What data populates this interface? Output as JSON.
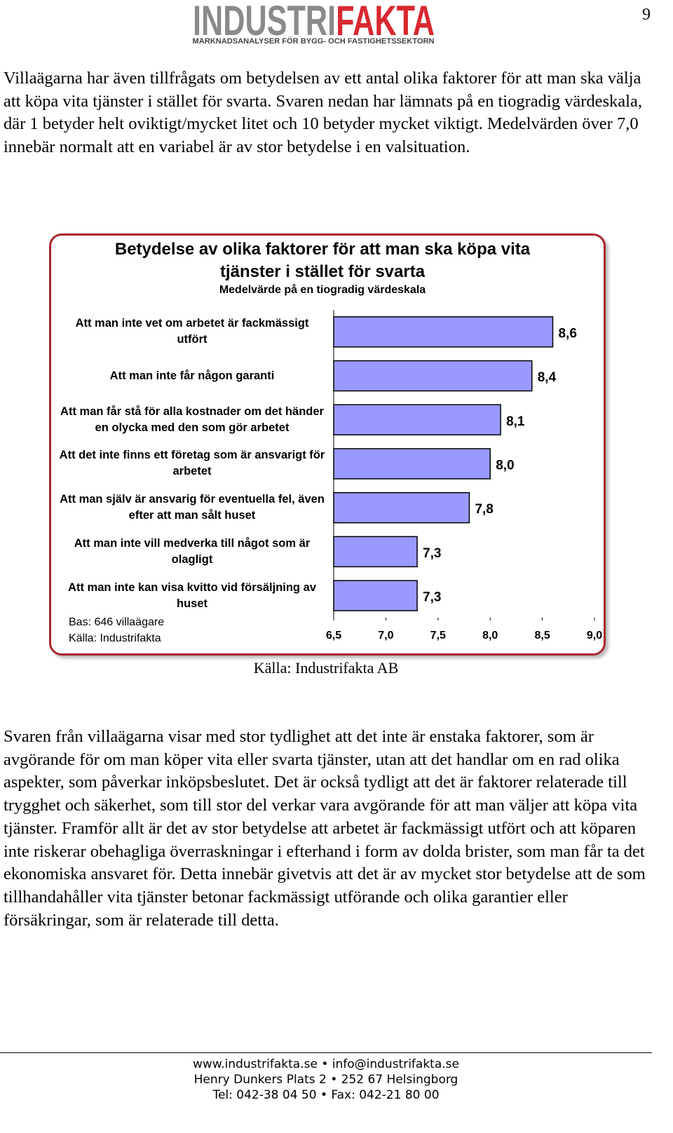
{
  "header": {
    "logo_part1": "INDUSTRI",
    "logo_part2": "FAKTA",
    "tagline": "MARKNADSANALYSER FÖR BYGG- OCH FASTIGHETSSEKTORN",
    "page_number": "9"
  },
  "intro": "Villaägarna har även tillfrågats om betydelsen av ett antal olika faktorer för att man ska välja att köpa vita tjänster i stället för svarta. Svaren nedan har lämnats på en tiogradig värdeskala, där 1 betyder helt oviktigt/mycket litet och 10 betyder mycket viktigt. Medelvärden över 7,0 innebär normalt att en variabel är av stor betydelse i en valsituation.",
  "chart_data": {
    "type": "bar",
    "orientation": "horizontal",
    "title": "Betydelse av olika faktorer för att man ska köpa vita tjänster i stället för svarta",
    "subtitle": "Medelvärde på en tiogradig värdeskala",
    "categories": [
      "Att man inte vet om arbetet är fackmässigt utfört",
      "Att man inte får någon garanti",
      "Att man får stå för alla kostnader om det händer en olycka med den som gör arbetet",
      "Att det inte finns ett företag som är ansvarigt för arbetet",
      "Att man själv är ansvarig för eventuella fel, även efter att man sålt huset",
      "Att man inte vill medverka till något som är olagligt",
      "Att man inte kan visa kvitto vid försäljning av huset"
    ],
    "values": [
      8.6,
      8.4,
      8.1,
      8.0,
      7.8,
      7.3,
      7.3
    ],
    "value_labels": [
      "8,6",
      "8,4",
      "8,1",
      "8,0",
      "7,8",
      "7,3",
      "7,3"
    ],
    "color": "#9999ff",
    "xlim": [
      6.5,
      9.0
    ],
    "xticks": [
      {
        "value": 6.5,
        "label": "6,5"
      },
      {
        "value": 7.0,
        "label": "7,0"
      },
      {
        "value": 7.5,
        "label": "7,5"
      },
      {
        "value": 8.0,
        "label": "8,0"
      },
      {
        "value": 8.5,
        "label": "8,5"
      },
      {
        "value": 9.0,
        "label": "9,0"
      }
    ],
    "notes": [
      "Bas: 646 villaägare",
      "Källa: Industrifakta"
    ]
  },
  "source": "Källa: Industrifakta AB",
  "body": "Svaren från villaägarna visar med stor tydlighet att det inte är enstaka faktorer, som är avgörande för om man köper vita eller svarta tjänster, utan att det handlar om en rad olika aspekter, som påverkar inköpsbeslutet. Det är också tydligt att det är faktorer relaterade till trygghet och säkerhet, som till stor del verkar vara avgörande för att man väljer att köpa vita tjänster. Framför allt är det av stor betydelse att arbetet är fackmässigt utfört och att köparen inte riskerar obehagliga överraskningar i efterhand i form av dolda brister, som man får ta det ekonomiska ansvaret för. Detta innebär givetvis att det är av mycket stor betydelse att de som tillhandahåller vita tjänster betonar fackmässigt utförande och olika garantier eller försäkringar, som är relaterade till detta.",
  "footer": {
    "lines": [
      "www.industrifakta.se • info@industrifakta.se",
      "Henry Dunkers Plats 2 • 252 67 Helsingborg",
      "Tel: 042-38 04 50 • Fax: 042-21 80 00"
    ]
  }
}
